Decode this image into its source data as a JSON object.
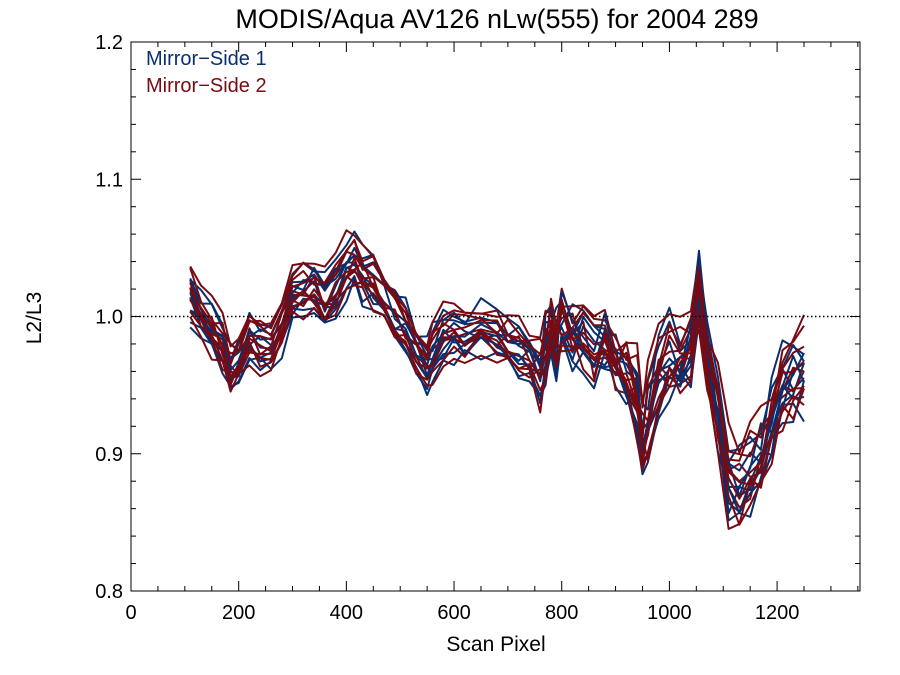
{
  "chart_data": {
    "type": "line",
    "title": "MODIS/Aqua AV126 nLw(555) for 2004 289",
    "xlabel": "Scan Pixel",
    "ylabel": "L2/L3",
    "xlim": [
      0,
      1354
    ],
    "ylim": [
      0.8,
      1.2
    ],
    "xticks": [
      0,
      200,
      400,
      600,
      800,
      1000,
      1200
    ],
    "xtick_labels": [
      "0",
      "200",
      "400",
      "600",
      "800",
      "1000",
      "1200"
    ],
    "xminor_step": 50,
    "yticks": [
      0.8,
      0.9,
      1.0,
      1.1,
      1.2
    ],
    "ytick_labels": [
      "0.8",
      "0.9",
      "1.0",
      "1.1",
      "1.2"
    ],
    "yminor_step": 0.02,
    "reference_line": 1.0,
    "legend": {
      "placement": "top-left"
    },
    "colors": {
      "ms1": "#0a2f6e",
      "ms2": "#7a0a12"
    },
    "base_profile": {
      "x": [
        110,
        130,
        150,
        170,
        185,
        200,
        220,
        240,
        260,
        280,
        300,
        320,
        340,
        360,
        380,
        400,
        415,
        430,
        450,
        470,
        490,
        510,
        530,
        550,
        560,
        580,
        600,
        620,
        650,
        680,
        700,
        720,
        740,
        760,
        770,
        780,
        790,
        800,
        820,
        840,
        860,
        880,
        900,
        920,
        940,
        950,
        960,
        980,
        1000,
        1020,
        1040,
        1055,
        1070,
        1090,
        1110,
        1130,
        1150,
        1170,
        1190,
        1210,
        1230,
        1250
      ],
      "y": [
        1.015,
        1.0,
        0.99,
        0.978,
        0.962,
        0.965,
        0.985,
        0.978,
        0.98,
        0.993,
        1.01,
        1.018,
        1.02,
        1.01,
        1.02,
        1.035,
        1.04,
        1.03,
        1.025,
        1.015,
        1.0,
        0.99,
        0.975,
        0.965,
        0.972,
        0.985,
        0.988,
        0.985,
        0.99,
        0.985,
        0.98,
        0.975,
        0.97,
        0.958,
        0.975,
        0.99,
        0.975,
        0.995,
        0.985,
        0.985,
        0.975,
        0.98,
        0.965,
        0.955,
        0.94,
        0.91,
        0.925,
        0.96,
        0.97,
        0.965,
        0.975,
        1.02,
        0.97,
        0.93,
        0.88,
        0.875,
        0.885,
        0.895,
        0.92,
        0.95,
        0.955,
        0.96
      ]
    },
    "series": [
      {
        "group": "ms1",
        "offset": 0.012,
        "noise_seed": 1
      },
      {
        "group": "ms1",
        "offset": 0.004,
        "noise_seed": 2
      },
      {
        "group": "ms1",
        "offset": -0.006,
        "noise_seed": 3
      },
      {
        "group": "ms1",
        "offset": -0.012,
        "noise_seed": 4
      },
      {
        "group": "ms1",
        "offset": 0.0,
        "noise_seed": 5
      },
      {
        "group": "ms1",
        "offset": 0.008,
        "noise_seed": 6
      },
      {
        "group": "ms1",
        "offset": -0.002,
        "noise_seed": 7
      },
      {
        "group": "ms1",
        "offset": -0.009,
        "noise_seed": 8
      },
      {
        "group": "ms1",
        "offset": 0.016,
        "noise_seed": 9
      },
      {
        "group": "ms1",
        "offset": -0.016,
        "noise_seed": 10
      },
      {
        "group": "ms2",
        "offset": 0.014,
        "noise_seed": 11
      },
      {
        "group": "ms2",
        "offset": 0.006,
        "noise_seed": 12
      },
      {
        "group": "ms2",
        "offset": -0.004,
        "noise_seed": 13
      },
      {
        "group": "ms2",
        "offset": -0.01,
        "noise_seed": 14
      },
      {
        "group": "ms2",
        "offset": 0.002,
        "noise_seed": 15
      },
      {
        "group": "ms2",
        "offset": 0.01,
        "noise_seed": 16
      },
      {
        "group": "ms2",
        "offset": -0.001,
        "noise_seed": 17
      },
      {
        "group": "ms2",
        "offset": -0.007,
        "noise_seed": 18
      },
      {
        "group": "ms2",
        "offset": 0.02,
        "noise_seed": 19
      },
      {
        "group": "ms2",
        "offset": -0.014,
        "noise_seed": 20
      }
    ],
    "legend_entries": [
      {
        "key": "ms1",
        "label": "Mirror−Side 1"
      },
      {
        "key": "ms2",
        "label": "Mirror−Side 2"
      }
    ]
  }
}
